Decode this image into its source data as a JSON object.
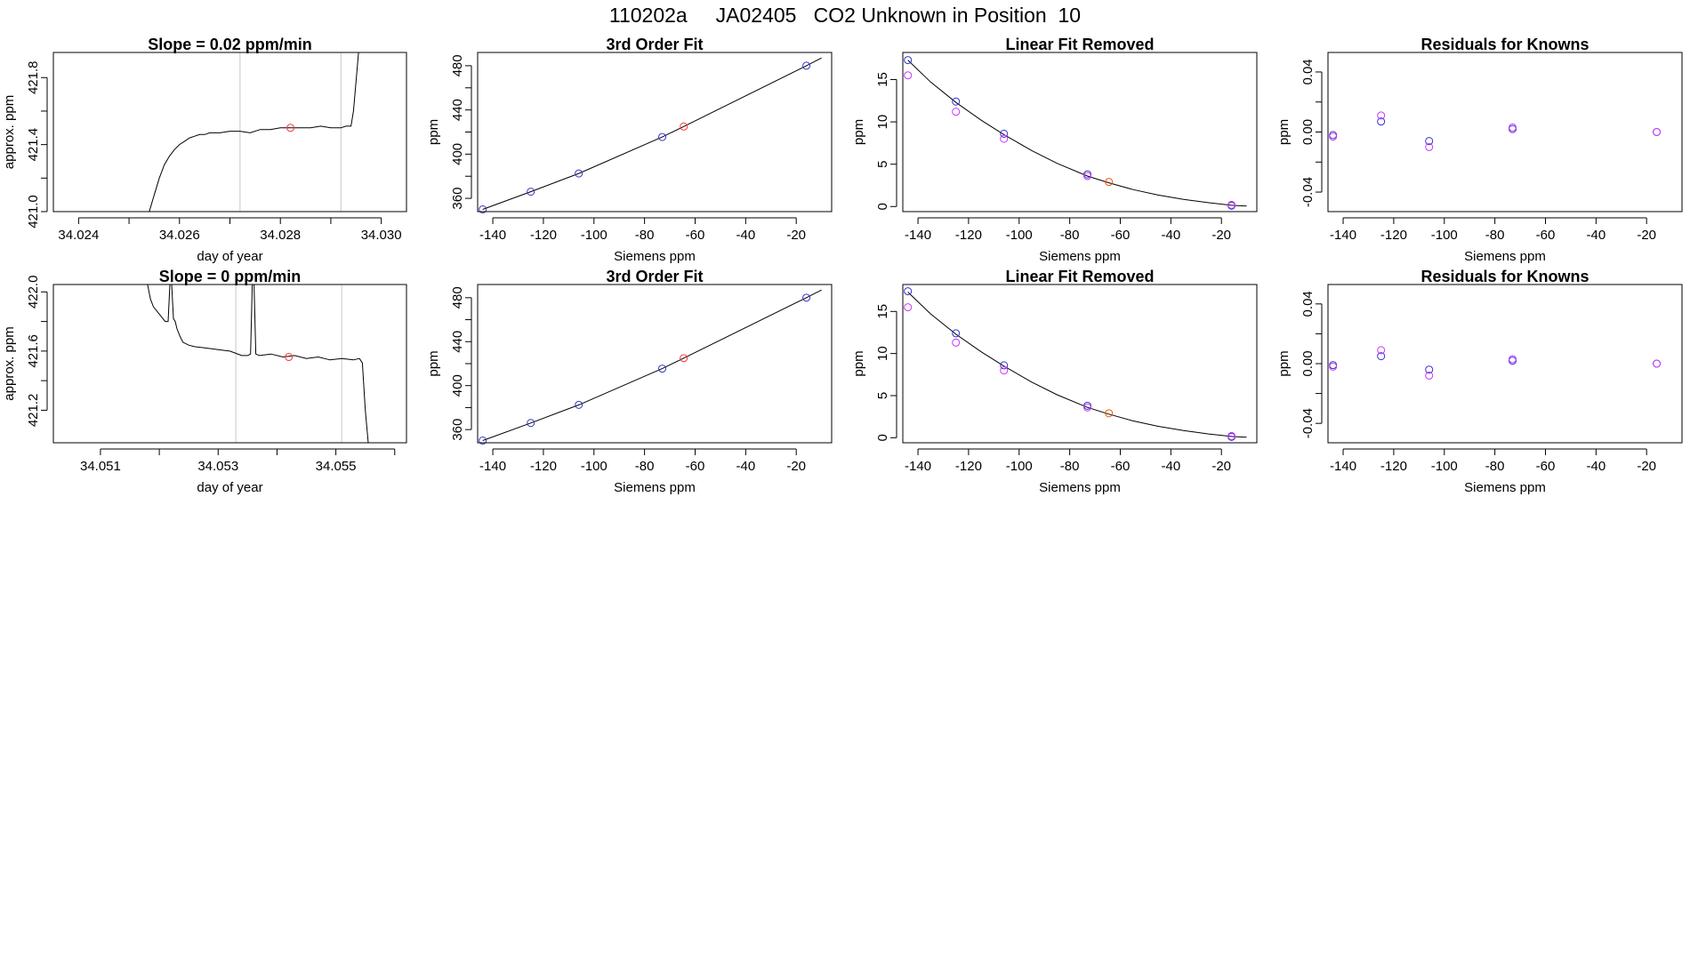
{
  "page": {
    "title": "110202a     JA02405   CO2 Unknown in Position  10"
  },
  "colors": {
    "axis": "#000000",
    "line": "#000000",
    "gridline": "#c8c8c8",
    "known_point": "#3333cc",
    "known_point_alt": "#cc33ff",
    "unknown_point": "#ff3333",
    "unknown_point_fit": "#ee5500"
  },
  "chart_data": [
    {
      "id": "r1-trace",
      "type": "line",
      "title": "Slope =  0.02  ppm/min",
      "xlabel": "day of year",
      "ylabel": "approx. ppm",
      "xlim": [
        34.0235,
        34.0305
      ],
      "ylim": [
        421.0,
        421.95
      ],
      "xticks": [
        34.024,
        34.025,
        34.026,
        34.027,
        34.028,
        34.029,
        34.03
      ],
      "xtick_labels": [
        "34.024",
        "",
        "34.026",
        "",
        "34.028",
        "",
        "34.030"
      ],
      "yticks": [
        421.0,
        421.2,
        421.4,
        421.6,
        421.8
      ],
      "ytick_labels": [
        "421.0",
        "",
        "421.4",
        "",
        "421.8"
      ],
      "vlines": [
        34.0272,
        34.0292
      ],
      "series": [
        {
          "x": [
            34.0254,
            34.0255,
            34.0256,
            34.0257,
            34.0258,
            34.0259,
            34.026,
            34.0261,
            34.0262,
            34.0263,
            34.0264,
            34.0265,
            34.0266,
            34.0268,
            34.027,
            34.0272,
            34.0274,
            34.0276,
            34.0278,
            34.028,
            34.0282,
            34.0284,
            34.0286,
            34.0288,
            34.029,
            34.0292,
            34.0293,
            34.0294,
            34.02945,
            34.02955
          ],
          "y": [
            421.0,
            421.1,
            421.2,
            421.28,
            421.33,
            421.37,
            421.4,
            421.42,
            421.44,
            421.45,
            421.46,
            421.46,
            421.47,
            421.47,
            421.48,
            421.48,
            421.47,
            421.49,
            421.49,
            421.5,
            421.5,
            421.5,
            421.5,
            421.51,
            421.5,
            421.5,
            421.51,
            421.51,
            421.6,
            421.95
          ]
        }
      ],
      "marker": {
        "x": 34.0282,
        "y": 421.5
      }
    },
    {
      "id": "r1-fit",
      "type": "scatter",
      "title": "3rd Order Fit",
      "xlabel": "Siemens ppm",
      "ylabel": "ppm",
      "xlim": [
        -146,
        -6
      ],
      "ylim": [
        348,
        492
      ],
      "xticks": [
        -140,
        -120,
        -100,
        -80,
        -60,
        -40,
        -20
      ],
      "xtick_labels": [
        "-140",
        "-120",
        "-100",
        "-80",
        "-60",
        "-40",
        "-20"
      ],
      "yticks": [
        360,
        380,
        400,
        420,
        440,
        460,
        480
      ],
      "ytick_labels": [
        "360",
        "",
        "400",
        "",
        "440",
        "",
        "480"
      ],
      "curve": {
        "x": [
          -144,
          -125,
          -106,
          -73,
          -64.5,
          -16,
          -10
        ],
        "y": [
          350,
          366,
          382.5,
          415.5,
          425,
          480,
          487
        ]
      },
      "points": [
        {
          "x": -144,
          "y": 350,
          "kind": "known"
        },
        {
          "x": -125,
          "y": 366,
          "kind": "known"
        },
        {
          "x": -106,
          "y": 382.5,
          "kind": "known"
        },
        {
          "x": -73,
          "y": 415.5,
          "kind": "known"
        },
        {
          "x": -16,
          "y": 480,
          "kind": "known"
        },
        {
          "x": -64.5,
          "y": 425,
          "kind": "unknown"
        }
      ]
    },
    {
      "id": "r1-linear",
      "type": "scatter",
      "title": "Linear Fit Removed",
      "xlabel": "Siemens ppm",
      "ylabel": "ppm",
      "xlim": [
        -146,
        -6
      ],
      "ylim": [
        -0.6,
        18.2
      ],
      "xticks": [
        -140,
        -120,
        -100,
        -80,
        -60,
        -40,
        -20
      ],
      "xtick_labels": [
        "-140",
        "-120",
        "-100",
        "-80",
        "-60",
        "-40",
        "-20"
      ],
      "yticks": [
        0,
        5,
        10,
        15
      ],
      "ytick_labels": [
        "0",
        "5",
        "10",
        "15"
      ],
      "curve": {
        "x": [
          -144,
          -135,
          -125,
          -115,
          -106,
          -95,
          -85,
          -73,
          -64.5,
          -55,
          -45,
          -35,
          -25,
          -16,
          -10
        ],
        "y": [
          17.3,
          14.7,
          12.3,
          10.2,
          8.5,
          6.6,
          5.1,
          3.6,
          2.8,
          2.0,
          1.35,
          0.85,
          0.45,
          0.15,
          0.05
        ]
      },
      "points": [
        {
          "x": -144,
          "y": 17.3,
          "kind": "known"
        },
        {
          "x": -125,
          "y": 12.4,
          "kind": "known"
        },
        {
          "x": -106,
          "y": 8.6,
          "kind": "known"
        },
        {
          "x": -73,
          "y": 3.8,
          "kind": "known"
        },
        {
          "x": -16,
          "y": 0.1,
          "kind": "known"
        },
        {
          "x": -144,
          "y": 15.5,
          "kind": "known_alt"
        },
        {
          "x": -125,
          "y": 11.2,
          "kind": "known_alt"
        },
        {
          "x": -106,
          "y": 8.0,
          "kind": "known_alt"
        },
        {
          "x": -73,
          "y": 3.6,
          "kind": "known_alt"
        },
        {
          "x": -16,
          "y": 0.2,
          "kind": "known_alt"
        },
        {
          "x": -64.5,
          "y": 2.9,
          "kind": "unknown_fit"
        }
      ]
    },
    {
      "id": "r1-resid",
      "type": "scatter",
      "title": "Residuals for Knowns",
      "xlabel": "Siemens ppm",
      "ylabel": "ppm",
      "xlim": [
        -146,
        -6
      ],
      "ylim": [
        -0.053,
        0.053
      ],
      "xticks": [
        -140,
        -120,
        -100,
        -80,
        -60,
        -40,
        -20
      ],
      "xtick_labels": [
        "-140",
        "-120",
        "-100",
        "-80",
        "-60",
        "-40",
        "-20"
      ],
      "yticks": [
        -0.04,
        -0.02,
        0.0,
        0.02,
        0.04
      ],
      "ytick_labels": [
        "-0.04",
        "",
        "0.00",
        "",
        "0.04"
      ],
      "points": [
        {
          "x": -144,
          "y": -0.002,
          "kind": "known"
        },
        {
          "x": -125,
          "y": 0.007,
          "kind": "known"
        },
        {
          "x": -106,
          "y": -0.006,
          "kind": "known"
        },
        {
          "x": -73,
          "y": 0.002,
          "kind": "known"
        },
        {
          "x": -16,
          "y": 0.0,
          "kind": "known"
        },
        {
          "x": -144,
          "y": -0.003,
          "kind": "known_alt"
        },
        {
          "x": -125,
          "y": 0.011,
          "kind": "known_alt"
        },
        {
          "x": -106,
          "y": -0.01,
          "kind": "known_alt"
        },
        {
          "x": -73,
          "y": 0.003,
          "kind": "known_alt"
        },
        {
          "x": -16,
          "y": 0.0,
          "kind": "known_alt"
        }
      ]
    },
    {
      "id": "r2-trace",
      "type": "line",
      "title": "Slope =  0  ppm/min",
      "xlabel": "day of year",
      "ylabel": "approx. ppm",
      "xlim": [
        34.0502,
        34.0562
      ],
      "ylim": [
        420.98,
        422.05
      ],
      "xticks": [
        34.051,
        34.052,
        34.053,
        34.054,
        34.055,
        34.056
      ],
      "xtick_labels": [
        "34.051",
        "",
        "34.053",
        "",
        "34.055",
        ""
      ],
      "yticks": [
        421.2,
        421.4,
        421.6,
        421.8,
        422.0
      ],
      "ytick_labels": [
        "421.2",
        "",
        "421.6",
        "",
        "422.0"
      ],
      "vlines": [
        34.0533,
        34.0551
      ],
      "series": [
        {
          "x": [
            34.0518,
            34.05185,
            34.0519,
            34.052,
            34.0521,
            34.05215,
            34.05218,
            34.05221,
            34.05224,
            34.05227,
            34.0523,
            34.05235,
            34.0524,
            34.0525,
            34.0526,
            34.0528,
            34.053,
            34.0532,
            34.0534,
            34.0535,
            34.05355,
            34.05358,
            34.05361,
            34.05364,
            34.0537,
            34.0539,
            34.0541,
            34.0543,
            34.0545,
            34.0547,
            34.0549,
            34.0551,
            34.0553,
            34.0554,
            34.05545,
            34.0555,
            34.05555
          ],
          "y": [
            422.05,
            421.95,
            421.9,
            421.85,
            421.8,
            421.8,
            422.05,
            422.05,
            421.82,
            421.8,
            421.75,
            421.7,
            421.66,
            421.64,
            421.63,
            421.62,
            421.61,
            421.6,
            421.57,
            421.57,
            421.58,
            422.05,
            422.05,
            421.58,
            421.57,
            421.58,
            421.56,
            421.57,
            421.55,
            421.56,
            421.54,
            421.55,
            421.54,
            421.55,
            421.52,
            421.2,
            420.98
          ]
        }
      ],
      "marker": {
        "x": 34.0542,
        "y": 421.56
      }
    },
    {
      "id": "r2-fit",
      "type": "scatter",
      "title": "3rd Order Fit",
      "xlabel": "Siemens ppm",
      "ylabel": "ppm",
      "xlim": [
        -146,
        -6
      ],
      "ylim": [
        348,
        492
      ],
      "xticks": [
        -140,
        -120,
        -100,
        -80,
        -60,
        -40,
        -20
      ],
      "xtick_labels": [
        "-140",
        "-120",
        "-100",
        "-80",
        "-60",
        "-40",
        "-20"
      ],
      "yticks": [
        360,
        380,
        400,
        420,
        440,
        460,
        480
      ],
      "ytick_labels": [
        "360",
        "",
        "400",
        "",
        "440",
        "",
        "480"
      ],
      "curve": {
        "x": [
          -144,
          -125,
          -106,
          -73,
          -64.5,
          -16,
          -10
        ],
        "y": [
          350,
          366,
          382.5,
          415.5,
          425,
          480,
          487
        ]
      },
      "points": [
        {
          "x": -144,
          "y": 350,
          "kind": "known"
        },
        {
          "x": -125,
          "y": 366,
          "kind": "known"
        },
        {
          "x": -106,
          "y": 382.5,
          "kind": "known"
        },
        {
          "x": -73,
          "y": 415.5,
          "kind": "known"
        },
        {
          "x": -16,
          "y": 480,
          "kind": "known"
        },
        {
          "x": -64.5,
          "y": 425,
          "kind": "unknown"
        }
      ]
    },
    {
      "id": "r2-linear",
      "type": "scatter",
      "title": "Linear Fit Removed",
      "xlabel": "Siemens ppm",
      "ylabel": "ppm",
      "xlim": [
        -146,
        -6
      ],
      "ylim": [
        -0.6,
        18.2
      ],
      "xticks": [
        -140,
        -120,
        -100,
        -80,
        -60,
        -40,
        -20
      ],
      "xtick_labels": [
        "-140",
        "-120",
        "-100",
        "-80",
        "-60",
        "-40",
        "-20"
      ],
      "yticks": [
        0,
        5,
        10,
        15
      ],
      "ytick_labels": [
        "0",
        "5",
        "10",
        "15"
      ],
      "curve": {
        "x": [
          -144,
          -135,
          -125,
          -115,
          -106,
          -95,
          -85,
          -73,
          -64.5,
          -55,
          -45,
          -35,
          -25,
          -16,
          -10
        ],
        "y": [
          17.3,
          14.7,
          12.3,
          10.2,
          8.5,
          6.6,
          5.1,
          3.6,
          2.8,
          2.0,
          1.35,
          0.85,
          0.45,
          0.15,
          0.05
        ]
      },
      "points": [
        {
          "x": -144,
          "y": 17.4,
          "kind": "known"
        },
        {
          "x": -125,
          "y": 12.4,
          "kind": "known"
        },
        {
          "x": -106,
          "y": 8.6,
          "kind": "known"
        },
        {
          "x": -73,
          "y": 3.8,
          "kind": "known"
        },
        {
          "x": -16,
          "y": 0.1,
          "kind": "known"
        },
        {
          "x": -144,
          "y": 15.5,
          "kind": "known_alt"
        },
        {
          "x": -125,
          "y": 11.3,
          "kind": "known_alt"
        },
        {
          "x": -106,
          "y": 8.0,
          "kind": "known_alt"
        },
        {
          "x": -73,
          "y": 3.6,
          "kind": "known_alt"
        },
        {
          "x": -16,
          "y": 0.2,
          "kind": "known_alt"
        },
        {
          "x": -64.5,
          "y": 2.9,
          "kind": "unknown_fit"
        }
      ]
    },
    {
      "id": "r2-resid",
      "type": "scatter",
      "title": "Residuals for Knowns",
      "xlabel": "Siemens ppm",
      "ylabel": "ppm",
      "xlim": [
        -146,
        -6
      ],
      "ylim": [
        -0.053,
        0.053
      ],
      "xticks": [
        -140,
        -120,
        -100,
        -80,
        -60,
        -40,
        -20
      ],
      "xtick_labels": [
        "-140",
        "-120",
        "-100",
        "-80",
        "-60",
        "-40",
        "-20"
      ],
      "yticks": [
        -0.04,
        -0.02,
        0.0,
        0.02,
        0.04
      ],
      "ytick_labels": [
        "-0.04",
        "",
        "0.00",
        "",
        "0.04"
      ],
      "points": [
        {
          "x": -144,
          "y": -0.001,
          "kind": "known"
        },
        {
          "x": -125,
          "y": 0.005,
          "kind": "known"
        },
        {
          "x": -106,
          "y": -0.004,
          "kind": "known"
        },
        {
          "x": -73,
          "y": 0.002,
          "kind": "known"
        },
        {
          "x": -16,
          "y": 0.0,
          "kind": "known"
        },
        {
          "x": -144,
          "y": -0.002,
          "kind": "known_alt"
        },
        {
          "x": -125,
          "y": 0.009,
          "kind": "known_alt"
        },
        {
          "x": -106,
          "y": -0.008,
          "kind": "known_alt"
        },
        {
          "x": -73,
          "y": 0.003,
          "kind": "known_alt"
        },
        {
          "x": -16,
          "y": 0.0,
          "kind": "known_alt"
        }
      ]
    }
  ]
}
